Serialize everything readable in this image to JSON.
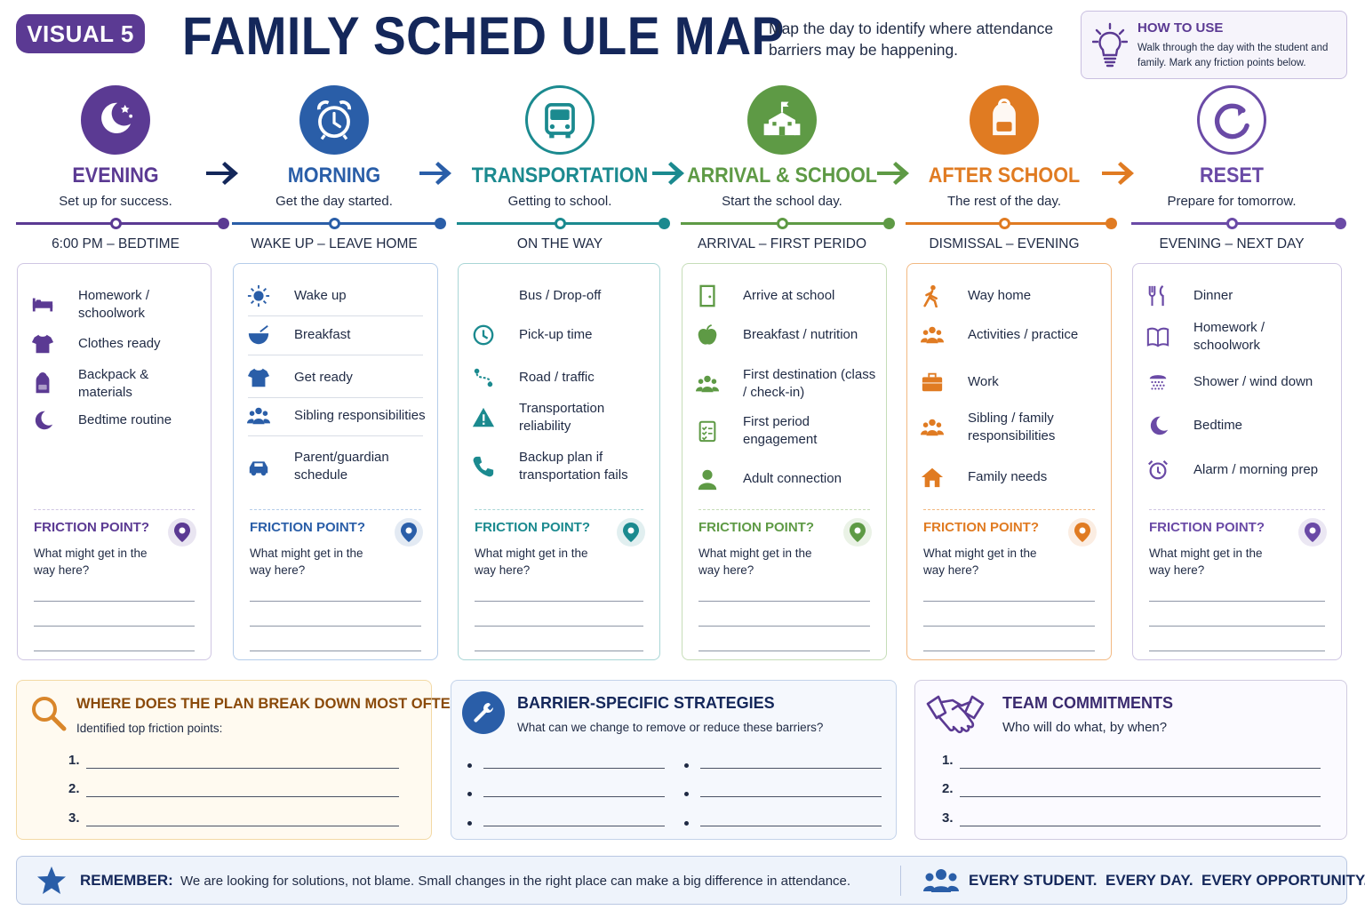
{
  "header": {
    "badge": "VISUAL 5",
    "title": "FAMILY SCHED ULE MAP",
    "subtitle": "Map the day to identify where attendance barriers may be happening.",
    "how_to_title": "HOW TO USE",
    "how_to_body": "Walk through the day with the student and family. Mark any friction points below."
  },
  "colors": {
    "evening": "#5b3a93",
    "morning": "#2a5ea8",
    "transportation": "#1b8a8f",
    "arrival": "#5e9a45",
    "afterschool": "#e07b22",
    "reset": "#6a4aa6",
    "navy": "#14275a"
  },
  "stages": [
    {
      "name": "EVENING",
      "desc": "Set up for success.",
      "time": "6:00 PM – BEDTIME",
      "icon": "moon-stars-icon",
      "items": [
        {
          "label": "Homework / schoolwork",
          "icon": "bed-icon"
        },
        {
          "label": "Clothes ready",
          "icon": "shirt-icon"
        },
        {
          "label": "Backpack & materials",
          "icon": "backpack-icon"
        },
        {
          "label": "Bedtime routine",
          "icon": "moon-icon"
        }
      ]
    },
    {
      "name": "MORNING",
      "desc": "Get the day started.",
      "time": "WAKE UP – LEAVE HOME",
      "icon": "alarm-clock-icon",
      "items": [
        {
          "label": "Wake up",
          "icon": "sun-icon"
        },
        {
          "label": "Breakfast",
          "icon": "bowl-icon"
        },
        {
          "label": "Get ready",
          "icon": "shirt-icon"
        },
        {
          "label": "Sibling responsibilities",
          "icon": "people-icon"
        },
        {
          "label": "Parent/guardian schedule",
          "icon": "car-icon"
        }
      ]
    },
    {
      "name": "TRANSPORTATION",
      "desc": "Getting to school.",
      "time": "ON THE WAY",
      "icon": "bus-icon",
      "items": [
        {
          "label": "Bus / Drop-off",
          "icon": "bus-icon"
        },
        {
          "label": "Pick-up time",
          "icon": "clock-icon"
        },
        {
          "label": "Road / traffic",
          "icon": "route-icon"
        },
        {
          "label": "Transportation reliability",
          "icon": "warning-icon"
        },
        {
          "label": "Backup plan if transportation fails",
          "icon": "phone-icon"
        }
      ]
    },
    {
      "name": "ARRIVAL & SCHOOL",
      "desc": "Start the school day.",
      "time": "ARRIVAL – FIRST PERIDO",
      "icon": "school-icon",
      "items": [
        {
          "label": "Arrive at school",
          "icon": "door-icon"
        },
        {
          "label": "Breakfast / nutrition",
          "icon": "apple-icon"
        },
        {
          "label": "First destination (class / check-in)",
          "icon": "group-icon"
        },
        {
          "label": "First period engagement",
          "icon": "checklist-icon"
        },
        {
          "label": "Adult connection",
          "icon": "person-icon"
        }
      ]
    },
    {
      "name": "AFTER SCHOOL",
      "desc": "The rest of the day.",
      "time": "DISMISSAL – EVENING",
      "icon": "backpack-icon",
      "items": [
        {
          "label": "Way home",
          "icon": "walking-icon"
        },
        {
          "label": "Activities / practice",
          "icon": "group-icon"
        },
        {
          "label": "Work",
          "icon": "briefcase-icon"
        },
        {
          "label": "Sibling / family responsibilities",
          "icon": "family-icon"
        },
        {
          "label": "Family needs",
          "icon": "home-icon"
        }
      ]
    },
    {
      "name": "RESET",
      "desc": "Prepare for tomorrow.",
      "time": "EVENING – NEXT DAY",
      "icon": "reset-icon",
      "items": [
        {
          "label": "Dinner",
          "icon": "utensils-icon"
        },
        {
          "label": "Homework / schoolwork",
          "icon": "book-icon"
        },
        {
          "label": "Shower / wind down",
          "icon": "shower-icon"
        },
        {
          "label": "Bedtime",
          "icon": "moon-icon"
        },
        {
          "label": "Alarm / morning prep",
          "icon": "alarm-icon"
        }
      ]
    }
  ],
  "friction": {
    "title": "FRICTION POINT?",
    "question": "What might get in the way here?"
  },
  "bottom": {
    "breakdown": {
      "title": "WHERE DOES THE PLAN BREAK DOWN MOST OFTEN?",
      "sub": "Identified top friction points:",
      "numbers": [
        "1.",
        "2.",
        "3."
      ]
    },
    "strategies": {
      "title": "BARRIER-SPECIFIC STRATEGIES",
      "sub": "What can we change to remove or reduce these barriers?"
    },
    "commitments": {
      "title": "TEAM COMMITMENTS",
      "sub": "Who will do what, by when?",
      "numbers": [
        "1.",
        "2.",
        "3."
      ]
    }
  },
  "footer": {
    "remember_label": "REMEMBER:",
    "remember_text": "We are looking for solutions, not blame. Small changes in the right place can make a big difference in attendance.",
    "slogan": "EVERY STUDENT.  EVERY DAY.  EVERY OPPORTUNITY."
  }
}
